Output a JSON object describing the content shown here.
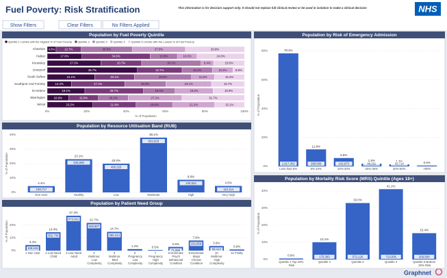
{
  "header": {
    "title": "Fuel Poverty: Risk Stratification",
    "disclaimer": "This information is for decision support only. It should not replace full clinical review or be used in isolation to make a clinical decision",
    "logo": "NHS"
  },
  "buttons": [
    "Show Filters",
    "Clear Filters",
    "No Filters Applied"
  ],
  "footer": "Graphnet",
  "chart_data": [
    {
      "type": "stacked-hbar",
      "title": "Population by Fuel Poverty Quintile",
      "categories": [
        "Cheshire",
        "Halton",
        "Knowsley",
        "Liverpool",
        "South Sefton",
        "Southport And Formby",
        "St Helens",
        "Warrington",
        "Wirral"
      ],
      "series": [
        {
          "name": "Quintile 1 LSOAs with the Highest % of Fuel Poverty",
          "color": "#3a0c44",
          "values": [
            4.5,
            17.6,
            27.2,
            45.7,
            24.1,
            12.2,
            19.1,
            10.9,
            23.2
          ],
          "value_labels": [
            "4.5%",
            "17.6%",
            "27.2%",
            "45.7%",
            "24.1%",
            "12.2%",
            "19.1%",
            "10.9%",
            "23.2%"
          ]
        },
        {
          "name": "Quintile 2",
          "color": "#7a3b7c",
          "values": [
            12.7,
            34.6,
            20.7,
            22.7,
            20.1,
            27.1,
            29.7,
            15.0,
            21.9
          ],
          "value_labels": [
            "12.7%",
            "34.6%",
            "20.7%",
            "22.7%",
            "20.1%",
            "27.1%",
            "29.7%",
            "15.0%",
            "21.9%"
          ]
        },
        {
          "name": "Quintile 3",
          "color": "#ab78ab",
          "values": [
            25.9,
            13.8,
            30.1,
            15.4,
            29.0,
            20.9,
            16.0,
            15.2,
            18.6
          ],
          "value_labels": [
            "25.9%",
            "13.8%",
            "30.1%",
            "15.4%",
            "29.0%",
            "20.9%",
            "16.0%",
            "15.2%",
            "18.6%"
          ]
        },
        {
          "name": "Quintile 4",
          "color": "#cfa6cf",
          "values": [
            27.0,
            10.0,
            6.4,
            10.4,
            11.6,
            23.1,
            19.3,
            27.2,
            21.2
          ],
          "value_labels": [
            "27.0%",
            "10.0%",
            "6.4%",
            "10.4%",
            "11.6%",
            "23.1%",
            "19.3%",
            "27.2%",
            "21.2%"
          ]
        },
        {
          "name": "Quintile 5 LSOAs with the Lowest % of Fuel Poverty",
          "color": "#ead3ea",
          "values": [
            29.9,
            24.0,
            15.6,
            5.8,
            15.2,
            16.7,
            15.9,
            31.7,
            15.1
          ],
          "value_labels": [
            "29.9%",
            "24.0%",
            "15.6%",
            "5.8%",
            "15.2%",
            "16.7%",
            "15.9%",
            "31.7%",
            "15.1%"
          ]
        }
      ],
      "xlim": [
        0,
        100
      ],
      "xticks": [
        {
          "value": 0,
          "label": "0%"
        },
        {
          "value": 20,
          "label": "20%"
        },
        {
          "value": 40,
          "label": "40%"
        },
        {
          "value": 60,
          "label": "60%"
        },
        {
          "value": 80,
          "label": "80%"
        },
        {
          "value": 100,
          "label": "100%"
        }
      ],
      "xlabel": "% of Population"
    },
    {
      "type": "bar",
      "title": "Population by Resource Utilisation Band (RUB)",
      "categories": [
        "Non User",
        "Healthy",
        "Low",
        "Moderate",
        "High",
        "Very High"
      ],
      "values": [
        4.4,
        23.1,
        20.0,
        38.1,
        8.8,
        4.5
      ],
      "value_labels": [
        "4.4%",
        "23.1%",
        "20.0%",
        "38.1%",
        "8.8%",
        "4.5%"
      ],
      "count_labels": [
        "108,717",
        "533,609",
        "495,525",
        "932,025",
        "240,524",
        "110,114"
      ],
      "color": "#3563c6",
      "ylim": [
        0,
        40
      ],
      "yticks": [
        {
          "value": 0,
          "label": "0%"
        },
        {
          "value": 10,
          "label": "10%"
        },
        {
          "value": 20,
          "label": "20%"
        },
        {
          "value": 30,
          "label": "30%"
        },
        {
          "value": 40,
          "label": "40%"
        }
      ],
      "ylabel": "% of Population"
    },
    {
      "type": "bar",
      "title": "Population by Patient Need Group",
      "categories": [
        "1 Non User",
        "2 Low Need Child",
        "3 Low Need Adult",
        "4 Multimor. Low Complexity",
        "5 Multimor. Med Complexity",
        "6 Pregnancy Low Complexity",
        "7 Pregnancy High Complexity",
        "8 Dominant Psych Behavioral Condition",
        "9 Dominant Major Chronic Condition",
        "10 Multimor. High Complexity",
        "11 Frailty"
      ],
      "values": [
        4.4,
        14.4,
        27.3,
        21.7,
        14.7,
        1.2,
        0.5,
        2.9,
        7.9,
        3.6,
        0.9
      ],
      "value_labels": [
        "4.4%",
        "14.4%",
        "27.3%",
        "21.7%",
        "14.7%",
        "1.2%",
        "0.5%",
        "2.9%",
        "7.9%",
        "3.6%",
        "0.9%"
      ],
      "count_labels": [
        "108,615",
        "352,730",
        "672,911",
        "529,807",
        "360,414",
        null,
        null,
        "71,555",
        "192,959",
        "89,414",
        null
      ],
      "color": "#3563c6",
      "ylim": [
        0,
        30
      ],
      "yticks": [
        {
          "value": 0,
          "label": "0%"
        },
        {
          "value": 10,
          "label": "10%"
        },
        {
          "value": 20,
          "label": "20%"
        }
      ],
      "ylabel": "% of Population"
    },
    {
      "type": "bar",
      "title": "Population by Risk of Emergency Admission",
      "categories": [
        "Less than 5%",
        "5%-10%",
        "10%-20%",
        "20%-30%",
        "30%-50%",
        ">50%"
      ],
      "values": [
        78.4,
        11.8,
        5.8,
        1.9,
        1.4,
        0.6
      ],
      "value_labels": [
        "78.4%",
        "11.8%",
        "5.8%",
        "1.9%",
        "1.4%",
        "0.6%"
      ],
      "count_labels": [
        "1,917,302",
        "288,509",
        "142,873",
        "46,311",
        "33,714",
        null
      ],
      "color": "#3563c6",
      "ylim": [
        0,
        85
      ],
      "yticks": [
        {
          "value": 0,
          "label": "0%"
        },
        {
          "value": 20,
          "label": "20%"
        },
        {
          "value": 40,
          "label": "40%"
        },
        {
          "value": 60,
          "label": "60%"
        },
        {
          "value": 80,
          "label": "80%"
        }
      ],
      "ylabel": "% of Population"
    },
    {
      "type": "bar",
      "title": "Population by Mortality Risk Score (MRS) Quintile (Ages 18+)",
      "categories": [
        "Quintile 1 Top 20% Risk",
        "Quintile 2",
        "Quintile 3",
        "Quintile 4",
        "Quintile 5 Bottom 20% Risk"
      ],
      "values": [
        0.6,
        10.1,
        33.0,
        41.1,
        15.4
      ],
      "value_labels": [
        "0.6%",
        "10.1%",
        "33.0%",
        "41.1%",
        "15.4%"
      ],
      "count_labels": [
        null,
        "175,393",
        "572,126",
        "713,936",
        "269,590"
      ],
      "color": "#3563c6",
      "ylim": [
        0,
        42
      ],
      "yticks": [
        {
          "value": 0,
          "label": "0%"
        },
        {
          "value": 10,
          "label": "10%"
        },
        {
          "value": 20,
          "label": "20%"
        },
        {
          "value": 30,
          "label": "30%"
        },
        {
          "value": 40,
          "label": "40%"
        }
      ],
      "ylabel": "% of Population"
    }
  ]
}
